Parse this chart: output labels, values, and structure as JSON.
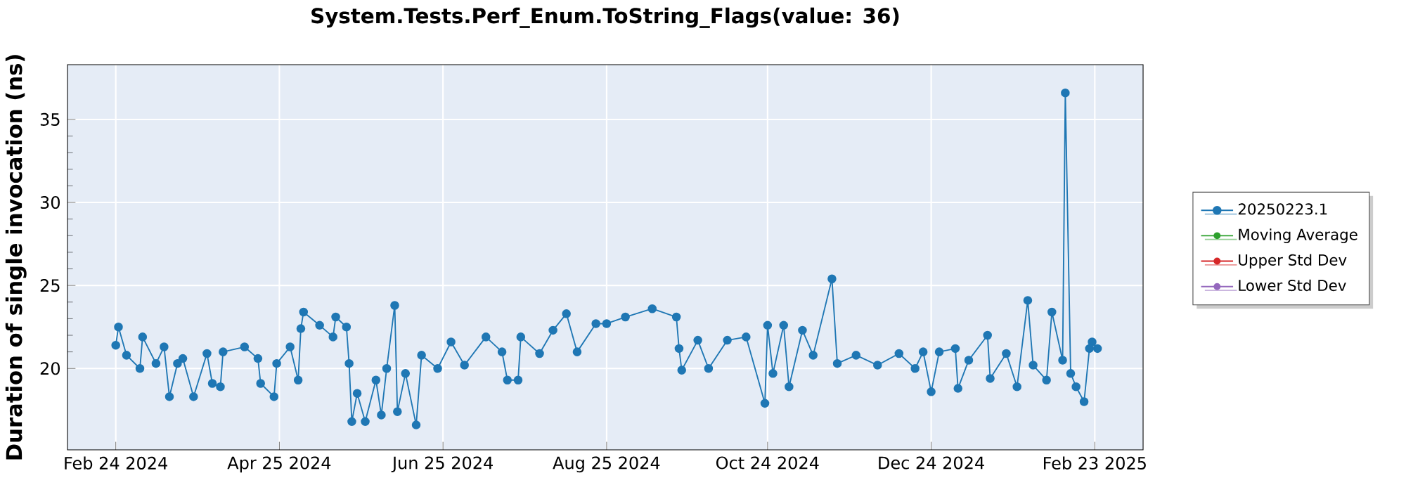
{
  "chart_data": {
    "type": "line",
    "title": "System.Tests.Perf_Enum.ToString_Flags(value: 36)",
    "ylabel": "Duration of single invocation (ns)",
    "x": [
      "2024-02-24",
      "2024-02-25",
      "2024-02-28",
      "2024-03-04",
      "2024-03-05",
      "2024-03-10",
      "2024-03-13",
      "2024-03-15",
      "2024-03-18",
      "2024-03-20",
      "2024-03-24",
      "2024-03-29",
      "2024-03-31",
      "2024-04-03",
      "2024-04-04",
      "2024-04-12",
      "2024-04-17",
      "2024-04-18",
      "2024-04-23",
      "2024-04-24",
      "2024-04-29",
      "2024-05-02",
      "2024-05-03",
      "2024-05-04",
      "2024-05-10",
      "2024-05-15",
      "2024-05-16",
      "2024-05-20",
      "2024-05-21",
      "2024-05-22",
      "2024-05-24",
      "2024-05-27",
      "2024-05-31",
      "2024-06-02",
      "2024-06-04",
      "2024-06-07",
      "2024-06-08",
      "2024-06-11",
      "2024-06-15",
      "2024-06-17",
      "2024-06-23",
      "2024-06-28",
      "2024-07-03",
      "2024-07-11",
      "2024-07-17",
      "2024-07-19",
      "2024-07-23",
      "2024-07-24",
      "2024-07-31",
      "2024-08-05",
      "2024-08-10",
      "2024-08-14",
      "2024-08-21",
      "2024-08-25",
      "2024-09-01",
      "2024-09-11",
      "2024-09-20",
      "2024-09-21",
      "2024-09-22",
      "2024-09-28",
      "2024-10-02",
      "2024-10-09",
      "2024-10-16",
      "2024-10-23",
      "2024-10-24",
      "2024-10-26",
      "2024-10-30",
      "2024-11-01",
      "2024-11-06",
      "2024-11-10",
      "2024-11-17",
      "2024-11-19",
      "2024-11-26",
      "2024-12-04",
      "2024-12-12",
      "2024-12-18",
      "2024-12-21",
      "2024-12-24",
      "2024-12-27",
      "2025-01-02",
      "2025-01-03",
      "2025-01-07",
      "2025-01-14",
      "2025-01-15",
      "2025-01-21",
      "2025-01-25",
      "2025-01-29",
      "2025-01-31",
      "2025-02-05",
      "2025-02-07",
      "2025-02-11",
      "2025-02-12",
      "2025-02-14",
      "2025-02-16",
      "2025-02-19",
      "2025-02-21",
      "2025-02-22",
      "2025-02-24"
    ],
    "series": [
      {
        "name": "20250223.1",
        "color": "#1f77b4",
        "values": [
          21.4,
          22.5,
          20.8,
          20.0,
          21.9,
          20.3,
          21.3,
          18.3,
          20.3,
          20.6,
          18.3,
          20.9,
          19.1,
          18.9,
          21.0,
          21.3,
          20.6,
          19.1,
          18.3,
          20.3,
          21.3,
          19.3,
          22.4,
          23.4,
          22.6,
          21.9,
          23.1,
          22.5,
          20.3,
          16.8,
          18.5,
          16.8,
          19.3,
          17.2,
          20.0,
          23.8,
          17.4,
          19.7,
          16.6,
          20.8,
          20.0,
          21.6,
          20.2,
          21.9,
          21.0,
          19.3,
          19.3,
          21.9,
          20.9,
          22.3,
          23.3,
          21.0,
          22.7,
          22.7,
          23.1,
          23.6,
          23.1,
          21.2,
          19.9,
          21.7,
          20.0,
          21.7,
          21.9,
          17.9,
          22.6,
          19.7,
          22.6,
          18.9,
          22.3,
          20.8,
          25.4,
          20.3,
          20.8,
          20.2,
          20.9,
          20.0,
          21.0,
          18.6,
          21.0,
          21.2,
          18.8,
          20.5,
          22.0,
          19.4,
          20.9,
          18.9,
          24.1,
          20.2,
          19.3,
          23.4,
          20.5,
          36.6,
          19.7,
          18.9,
          18.0,
          21.2,
          21.6,
          21.2
        ]
      },
      {
        "name": "Moving Average",
        "color": "#2ca02c",
        "values": [
          null,
          null,
          null,
          null,
          null,
          null,
          null,
          null,
          null,
          null,
          null,
          null,
          null,
          null,
          null,
          null,
          null,
          null,
          null,
          null,
          null,
          null,
          null,
          null,
          null,
          null,
          null,
          null,
          null,
          null,
          null,
          null,
          null,
          null,
          null,
          null,
          null,
          null,
          null,
          null,
          null,
          null,
          null,
          null,
          null,
          null,
          null,
          null,
          null,
          null,
          null,
          null,
          null,
          null,
          null,
          null,
          null,
          null,
          null,
          null,
          null,
          null,
          null,
          null,
          null,
          null,
          null,
          null,
          null,
          null,
          null,
          null,
          null,
          null,
          null,
          null,
          null,
          null,
          null,
          null,
          null,
          null,
          null,
          null,
          null,
          null,
          null,
          null,
          null,
          null,
          null,
          null,
          null,
          null,
          null,
          null,
          null,
          null
        ]
      },
      {
        "name": "Upper Std Dev",
        "color": "#d62728",
        "values": [
          null,
          null,
          null,
          null,
          null,
          null,
          null,
          null,
          null,
          null,
          null,
          null,
          null,
          null,
          null,
          null,
          null,
          null,
          null,
          null,
          null,
          null,
          null,
          null,
          null,
          null,
          null,
          null,
          null,
          null,
          null,
          null,
          null,
          null,
          null,
          null,
          null,
          null,
          null,
          null,
          null,
          null,
          null,
          null,
          null,
          null,
          null,
          null,
          null,
          null,
          null,
          null,
          null,
          null,
          null,
          null,
          null,
          null,
          null,
          null,
          null,
          null,
          null,
          null,
          null,
          null,
          null,
          null,
          null,
          null,
          null,
          null,
          null,
          null,
          null,
          null,
          null,
          null,
          null,
          null,
          null,
          null,
          null,
          null,
          null,
          null,
          null,
          null,
          null,
          null,
          null,
          null,
          null,
          null,
          null,
          null,
          null,
          null
        ]
      },
      {
        "name": "Lower Std Dev",
        "color": "#9467bd",
        "values": [
          null,
          null,
          null,
          null,
          null,
          null,
          null,
          null,
          null,
          null,
          null,
          null,
          null,
          null,
          null,
          null,
          null,
          null,
          null,
          null,
          null,
          null,
          null,
          null,
          null,
          null,
          null,
          null,
          null,
          null,
          null,
          null,
          null,
          null,
          null,
          null,
          null,
          null,
          null,
          null,
          null,
          null,
          null,
          null,
          null,
          null,
          null,
          null,
          null,
          null,
          null,
          null,
          null,
          null,
          null,
          null,
          null,
          null,
          null,
          null,
          null,
          null,
          null,
          null,
          null,
          null,
          null,
          null,
          null,
          null,
          null,
          null,
          null,
          null,
          null,
          null,
          null,
          null,
          null,
          null,
          null,
          null,
          null,
          null,
          null,
          null,
          null,
          null,
          null,
          null,
          null,
          null,
          null,
          null,
          null,
          null,
          null,
          null
        ]
      }
    ],
    "xlim": [
      "2024-02-06",
      "2025-03-13"
    ],
    "xticks": [
      {
        "value": "2024-02-24",
        "label": "Feb 24 2024"
      },
      {
        "value": "2024-04-25",
        "label": "Apr 25 2024"
      },
      {
        "value": "2024-06-25",
        "label": "Jun 25 2024"
      },
      {
        "value": "2024-08-25",
        "label": "Aug 25 2024"
      },
      {
        "value": "2024-10-24",
        "label": "Oct 24 2024"
      },
      {
        "value": "2024-12-24",
        "label": "Dec 24 2024"
      },
      {
        "value": "2025-02-23",
        "label": "Feb 23 2025"
      }
    ],
    "ylim": [
      15.1,
      38.3
    ],
    "yticks": [
      20,
      25,
      30,
      35
    ],
    "grid": true,
    "legend": "right",
    "marker": "circle",
    "line_style": "solid"
  }
}
